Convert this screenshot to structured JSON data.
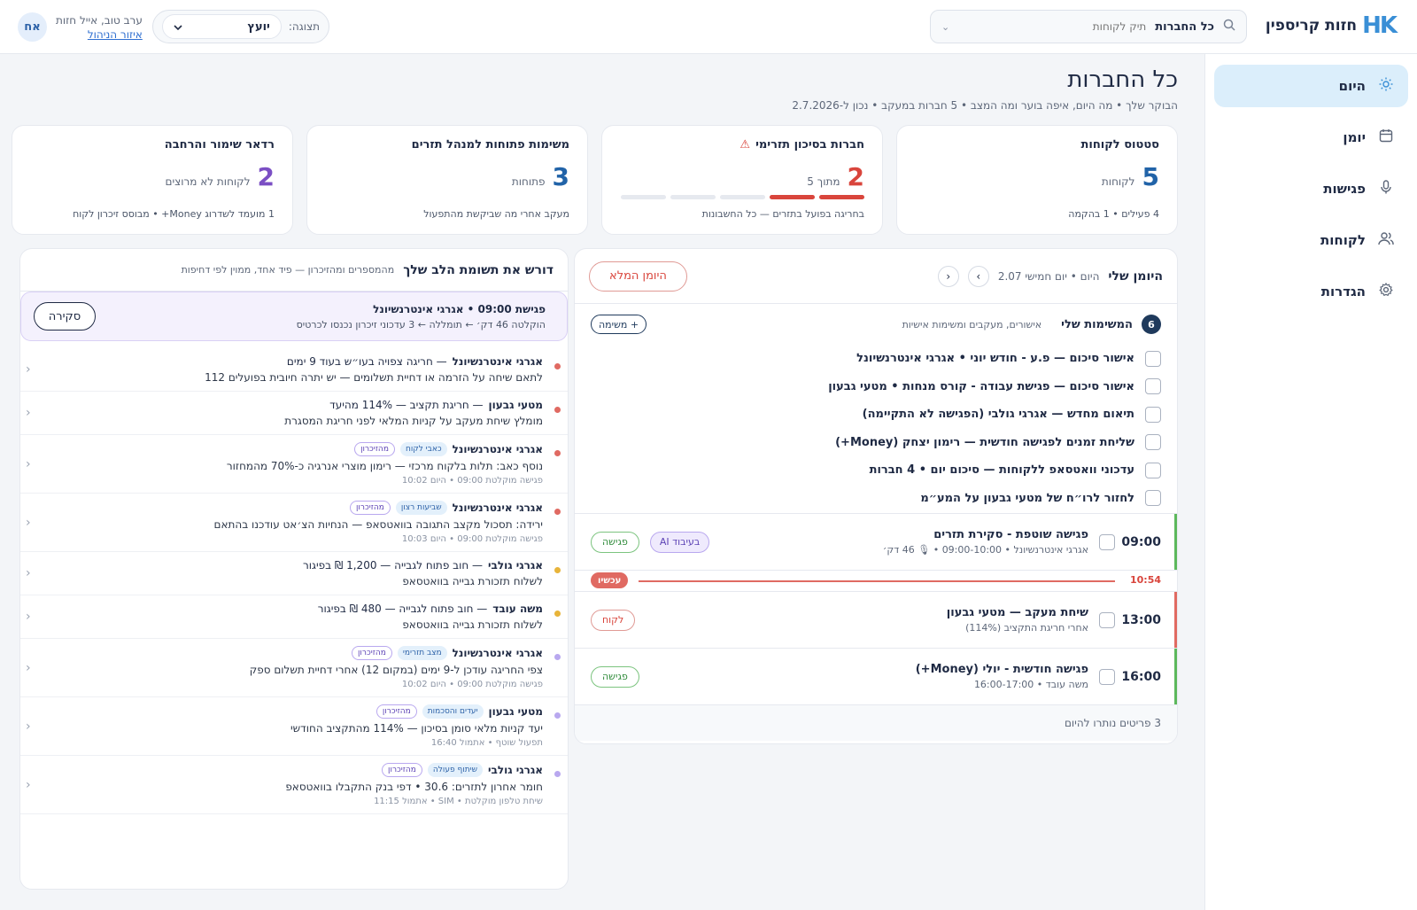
{
  "header": {
    "logo_mark": "HK",
    "logo_text": "חזות קריספין",
    "search_scope": "כל החברות",
    "search_placeholder": "תיק לקוחות",
    "view_label": "תצוגה:",
    "view_value": "יועץ",
    "greeting": "ערב טוב, אייל חזות",
    "admin_link": "איזור הניהול",
    "avatar_initials": "אח"
  },
  "sidebar": {
    "items": [
      {
        "label": "היום",
        "icon": "sun-icon",
        "active": true
      },
      {
        "label": "יומן",
        "icon": "calendar-icon"
      },
      {
        "label": "פגישות",
        "icon": "microphone-icon"
      },
      {
        "label": "לקוחות",
        "icon": "users-icon"
      },
      {
        "label": "הגדרות",
        "icon": "gear-icon"
      }
    ]
  },
  "page": {
    "title": "כל החברות",
    "subtitle": "הבוקר שלך • מה היום, איפה בוער ומה המצב • 5 חברות במעקב • נכון ל-2.7.2026"
  },
  "stats": [
    {
      "title": "סטטוס לקוחות",
      "value": "5",
      "unit": "לקוחות",
      "foot": "4 פעילים • 1 בהקמה",
      "color": "#2163a8"
    },
    {
      "title": "חברות בסיכון תזרימי",
      "value": "2",
      "unit": "מתוך 5",
      "foot": "בחריגה בפועל בתזרים — כל החשבונות",
      "color": "#d9453c",
      "risk_on": 2,
      "risk_total": 5
    },
    {
      "title": "משימות פתוחות למנהל תזרים",
      "value": "3",
      "unit": "פתוחות",
      "foot": "מעקב אחרי מה שביקשת מהתפעול",
      "color": "#2163a8"
    },
    {
      "title": "רדאר שימור והרחבה",
      "value": "2",
      "unit": "לקוחות לא מרוצים",
      "foot": "1 מועמד לשדרוג Money+ • מבוסס זיכרון לקוח",
      "color": "#7b4fc4"
    }
  ],
  "diary": {
    "title": "היומן שלי",
    "date": "היום • יום חמישי 2.07",
    "prev": "›",
    "next": "‹",
    "full_button": "היומן המלא",
    "tasks_count": "6",
    "tasks_title": "המשימות שלי",
    "tasks_sub": "אישורים, מעקבים ומשימות אישיות",
    "add_task": "+ משימה",
    "tasks": [
      "אישור סיכום — פ.ע - חודש יוני • אגרגי אינטרנשיונל",
      "אישור סיכום — פגישת עבודה - קורס מנחות • מטעי גבעון",
      "תיאום מחדש — אגרגי גולבי (הפגישה לא התקיימה)",
      "שליחת זמנים לפגישה חודשית — רימון יצחק (Money+)",
      "עדכוני וואטסאפ ללקוחות — סיכום יום • 4 חברות",
      "לחזור לרו״ח של מטעי גבעון על המע״מ"
    ],
    "events_before": [
      {
        "time": "09:00",
        "title": "פגישה שוטפת - סקירת תזרים",
        "meta": "אגרגי אינטרנשיונל • 09:00-10:00 • 🎙 46 דק׳",
        "ai": "בעיבוד AI",
        "tag": "פגישה",
        "tag_style": "green",
        "edge": "#5cb85c"
      }
    ],
    "now_time": "10:54",
    "now_label": "עכשיו",
    "events_after": [
      {
        "time": "13:00",
        "title": "שיחת מעקב — מטעי גבעון",
        "meta": "אחרי חריגת התקציב (114%)",
        "tag": "לקוח",
        "tag_style": "red",
        "edge": "#e06a62"
      },
      {
        "time": "16:00",
        "title": "פגישה חודשית - יולי (Money+)",
        "meta": "משה עובד • 16:00-17:00",
        "tag": "פגישה",
        "tag_style": "green",
        "edge": "#5cb85c"
      }
    ],
    "footer": "3 פריטים נותרו להיום"
  },
  "attention": {
    "title": "דורש את תשומת הלב שלך",
    "subtitle": "מהמספרים ומהזיכרון — פיד אחד, ממוין לפי דחיפות",
    "alert": {
      "title": "פגישת 09:00 • אגרגי אינטרנשיונל",
      "meta": "הוקלטה 46 דק׳ ← תומללה ← 3 עדכוני זיכרון נכנסו לכרטיס",
      "button": "סקירה"
    },
    "items": [
      {
        "dot": "#e06a62",
        "name": "אגרגי אינטרנשיונל",
        "title": "— חריגה צפויה בעו״ש בעוד 9 ימים",
        "tags": [],
        "body": "לתאם שיחה על הזרמה או דחיית תשלומים — יש יתרה חיובית בפועלים 112",
        "meta": ""
      },
      {
        "dot": "#e06a62",
        "name": "מטעי גבעון",
        "title": "— חריגת תקציב — 114% מהיעד",
        "tags": [],
        "body": "מומלץ שיחת מעקב על קניות המלאי לפני חריגת המסגרת",
        "meta": ""
      },
      {
        "dot": "#e06a62",
        "name": "אגרגי אינטרנשיונל",
        "title": "",
        "tags": [
          {
            "label": "כאבי לקוח",
            "style": "blue"
          },
          {
            "label": "מהזיכרון",
            "style": "purple"
          }
        ],
        "body": "נוסף כאב: תלות בלקוח מרכזי — רימון מוצרי אנרגיה כ-70% מהמחזור",
        "meta": "פגישה מוקלטת 09:00 • היום 10:02"
      },
      {
        "dot": "#e06a62",
        "name": "אגרגי אינטרנשיונל",
        "title": "",
        "tags": [
          {
            "label": "שביעות רצון",
            "style": "blue"
          },
          {
            "label": "מהזיכרון",
            "style": "purple"
          }
        ],
        "body": "ירידה: תסכול מקצב התגובה בוואטסאפ — הנחיות הצ׳אט עודכנו בהתאם",
        "meta": "פגישה מוקלטת 09:00 • היום 10:03"
      },
      {
        "dot": "#e8b43a",
        "name": "אגרגי גולבי",
        "title": "— חוב פתוח לגבייה — 1,200 ₪ בפיגור",
        "tags": [],
        "body": "לשלוח תזכורת גבייה בוואטסאפ",
        "meta": ""
      },
      {
        "dot": "#e8b43a",
        "name": "משה עובד",
        "title": "— חוב פתוח לגבייה — 480 ₪ בפיגור",
        "tags": [],
        "body": "לשלוח תזכורת גבייה בוואטסאפ",
        "meta": ""
      },
      {
        "dot": "#b9a8ef",
        "name": "אגרגי אינטרנשיונל",
        "title": "",
        "tags": [
          {
            "label": "מצב תזרימי",
            "style": "blue"
          },
          {
            "label": "מהזיכרון",
            "style": "purple"
          }
        ],
        "body": "צפי החריגה עודכן ל-9 ימים (במקום 12) אחרי דחיית תשלום ספק",
        "meta": "פגישה מוקלטת 09:00 • היום 10:02"
      },
      {
        "dot": "#b9a8ef",
        "name": "מטעי גבעון",
        "title": "",
        "tags": [
          {
            "label": "יעדים והסכמות",
            "style": "blue"
          },
          {
            "label": "מהזיכרון",
            "style": "purple"
          }
        ],
        "body": "יעד קניות מלאי סומן בסיכון — 114% מהתקציב החודשי",
        "meta": "תפעול שוטף • אתמול 16:40"
      },
      {
        "dot": "#b9a8ef",
        "name": "אגרגי גולבי",
        "title": "",
        "tags": [
          {
            "label": "שיתוף פעולה",
            "style": "blue"
          },
          {
            "label": "מהזיכרון",
            "style": "purple"
          }
        ],
        "body": "חומר אחרון לתזרים: 30.6 • דפי בנק התקבלו בוואטסאפ",
        "meta": "שיחת טלפון מוקלטת • SIM • אתמול 11:15"
      }
    ]
  }
}
